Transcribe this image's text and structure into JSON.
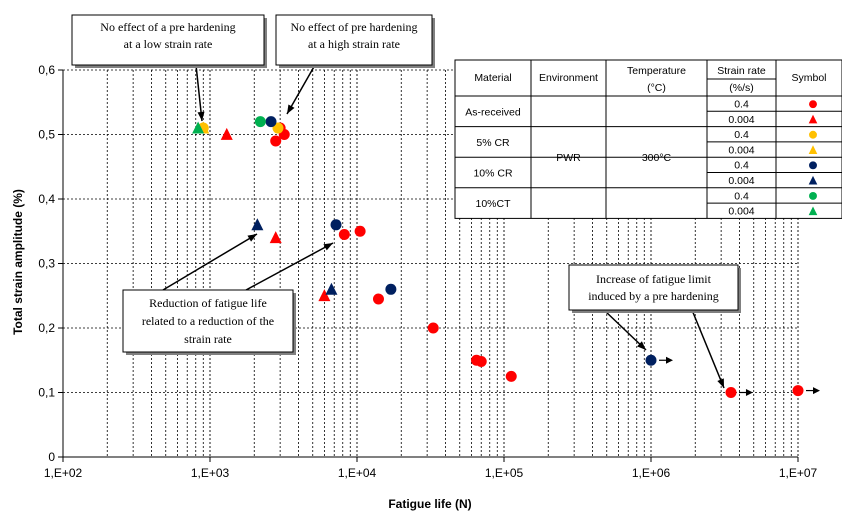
{
  "chart_data": {
    "type": "scatter",
    "title": "",
    "xlabel": "Fatigue life (N)",
    "ylabel": "Total strain amplitude (%)",
    "x_scale": "log",
    "xlim": [
      100,
      10000000
    ],
    "ylim": [
      0,
      0.6
    ],
    "grid": true,
    "x_ticks": [
      100,
      1000,
      10000,
      100000,
      1000000,
      10000000
    ],
    "x_tick_labels": [
      "1,E+02",
      "1,E+03",
      "1,E+04",
      "1,E+05",
      "1,E+06",
      "1,E+07"
    ],
    "y_ticks": [
      0,
      0.1,
      0.2,
      0.3,
      0.4,
      0.5,
      0.6
    ],
    "y_tick_labels": [
      "0",
      "0,1",
      "0,2",
      "0,3",
      "0,4",
      "0,5",
      "0,6"
    ],
    "series": [
      {
        "key": "ar_04",
        "color": "#ff0000",
        "marker": "circle",
        "points": [
          [
            2800,
            0.49
          ],
          [
            3000,
            0.51
          ],
          [
            3200,
            0.5
          ],
          [
            8200,
            0.345
          ],
          [
            10500,
            0.35
          ],
          [
            14000,
            0.245
          ],
          [
            33000,
            0.2
          ],
          [
            65000,
            0.15
          ],
          [
            70000,
            0.148
          ],
          [
            112000,
            0.125
          ],
          [
            3500000,
            0.1
          ],
          [
            10000000,
            0.103
          ]
        ],
        "runouts": [
          [
            3500000,
            0.1
          ],
          [
            10000000,
            0.103
          ]
        ]
      },
      {
        "key": "ar_0004",
        "color": "#ff0000",
        "marker": "triangle",
        "points": [
          [
            1300,
            0.5
          ],
          [
            2800,
            0.34
          ],
          [
            6000,
            0.25
          ]
        ],
        "runouts": []
      },
      {
        "key": "cr5_04",
        "color": "#ffc000",
        "marker": "circle",
        "points": [
          [
            900,
            0.51
          ],
          [
            2900,
            0.51
          ]
        ],
        "runouts": []
      },
      {
        "key": "cr5_0004",
        "color": "#ffc000",
        "marker": "triangle",
        "points": [
          [
            900,
            0.51
          ]
        ],
        "runouts": []
      },
      {
        "key": "cr10_04",
        "color": "#002060",
        "marker": "circle",
        "points": [
          [
            2600,
            0.52
          ],
          [
            7200,
            0.36
          ],
          [
            17000,
            0.26
          ],
          [
            1000000,
            0.15
          ]
        ],
        "runouts": [
          [
            1000000,
            0.15
          ]
        ]
      },
      {
        "key": "cr10_0004",
        "color": "#002060",
        "marker": "triangle",
        "points": [
          [
            2100,
            0.36
          ],
          [
            6700,
            0.26
          ]
        ],
        "runouts": []
      },
      {
        "key": "ct10_04",
        "color": "#00b050",
        "marker": "circle",
        "points": [
          [
            2200,
            0.52
          ]
        ],
        "runouts": []
      },
      {
        "key": "ct10_0004",
        "color": "#00b050",
        "marker": "triangle",
        "points": [
          [
            830,
            0.51
          ]
        ],
        "runouts": []
      }
    ],
    "annotations": [
      {
        "key": "low_rate",
        "lines": [
          "No effect of a pre hardening",
          "at a low strain rate"
        ]
      },
      {
        "key": "high_rate",
        "lines": [
          "No effect of pre hardening",
          "at a high strain rate"
        ]
      },
      {
        "key": "reduction",
        "lines": [
          "Reduction of fatigue life",
          "related to a reduction of the",
          "strain rate"
        ]
      },
      {
        "key": "increase",
        "lines": [
          "Increase of fatigue limit",
          "induced by a pre hardening"
        ]
      }
    ],
    "legend_table": {
      "headers": {
        "material": "Material",
        "environment": "Environment",
        "temperature": "Temperature",
        "temperature_unit": "(°C)",
        "strain_rate": "Strain rate",
        "strain_rate_unit": "(%/s)",
        "symbol": "Symbol"
      },
      "environment": "PWR",
      "temperature": "300°C",
      "groups": [
        {
          "material": "As-received",
          "rows": [
            {
              "rate": "0.4",
              "series": "ar_04"
            },
            {
              "rate": "0.004",
              "series": "ar_0004"
            }
          ]
        },
        {
          "material": "5% CR",
          "rows": [
            {
              "rate": "0.4",
              "series": "cr5_04"
            },
            {
              "rate": "0.004",
              "series": "cr5_0004"
            }
          ]
        },
        {
          "material": "10% CR",
          "rows": [
            {
              "rate": "0.4",
              "series": "cr10_04"
            },
            {
              "rate": "0.004",
              "series": "cr10_0004"
            }
          ]
        },
        {
          "material": "10%CT",
          "rows": [
            {
              "rate": "0.4",
              "series": "ct10_04"
            },
            {
              "rate": "0.004",
              "series": "ct10_0004"
            }
          ]
        }
      ]
    }
  }
}
